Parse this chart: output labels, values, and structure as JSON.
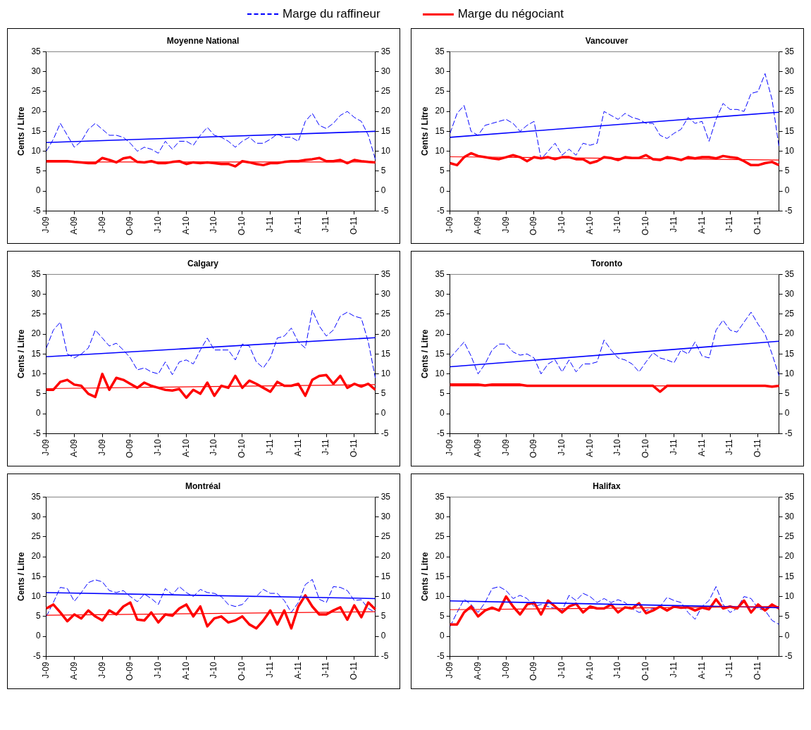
{
  "chart_data": [
    {
      "type": "line",
      "title": "Moyenne National",
      "ylabel": "Cents / Litre",
      "legend": "top",
      "marker": "none",
      "grid": false,
      "categories": [
        "J-09",
        null,
        null,
        null,
        "A-09",
        null,
        null,
        null,
        "J-09",
        null,
        null,
        null,
        "O-09",
        null,
        null,
        null,
        "J-10",
        null,
        null,
        null,
        "A-10",
        null,
        null,
        null,
        "J-10",
        null,
        null,
        null,
        "O-10",
        null,
        null,
        null,
        "J-11",
        null,
        null,
        null,
        "A-11",
        null,
        null,
        null,
        "J-11",
        null,
        null,
        null,
        "O-11",
        null,
        null,
        null
      ],
      "ylim": [
        -5,
        35
      ],
      "yticks": [
        -5,
        0,
        5,
        10,
        15,
        20,
        25,
        30,
        35
      ],
      "y2lim": [
        -5,
        35
      ],
      "y2ticks": [
        -5,
        0,
        5,
        10,
        15,
        20,
        25,
        30,
        35
      ],
      "series": [
        {
          "name": "Marge du raffineur",
          "color": "#0000ff",
          "line_style": "dashed",
          "values": [
            10,
            13,
            17,
            14,
            11,
            12.5,
            15.5,
            17,
            15.5,
            14,
            14,
            13.5,
            12,
            10,
            11,
            10.5,
            9.5,
            12.5,
            10.5,
            12.5,
            12.5,
            11.5,
            14,
            16,
            14,
            13.5,
            12.5,
            11,
            12.5,
            13.5,
            12,
            12,
            13,
            14.3,
            13.5,
            13.5,
            12.5,
            17.5,
            19.5,
            16.5,
            15.7,
            17,
            19,
            20,
            18.5,
            17.5,
            14,
            8
          ]
        },
        {
          "name": "Marge du négociant",
          "color": "#ff0000",
          "line_style": "solid",
          "values": [
            7.5,
            7.5,
            7.5,
            7.5,
            7.3,
            7.2,
            7,
            7,
            8.3,
            7.8,
            7.2,
            8.2,
            8.5,
            7.3,
            7.2,
            7.5,
            7,
            7,
            7.3,
            7.5,
            6.8,
            7.2,
            7,
            7.2,
            7,
            6.8,
            6.8,
            6.2,
            7.5,
            7.2,
            6.8,
            6.5,
            7,
            7,
            7.3,
            7.5,
            7.5,
            7.8,
            8,
            8.3,
            7.5,
            7.5,
            7.8,
            7,
            7.8,
            7.5,
            7.3,
            7.2
          ]
        },
        {
          "type": "line",
          "color": "#0000ff",
          "line_style": "solid",
          "values": [
            12.2,
            null,
            null,
            null,
            null,
            null,
            null,
            null,
            null,
            null,
            null,
            null,
            null,
            null,
            null,
            null,
            null,
            null,
            null,
            null,
            null,
            null,
            null,
            null,
            null,
            null,
            null,
            null,
            null,
            null,
            null,
            null,
            null,
            null,
            null,
            null,
            null,
            null,
            null,
            null,
            null,
            null,
            null,
            null,
            null,
            null,
            null,
            15
          ]
        },
        {
          "type": "line",
          "color": "#ff0000",
          "line_style": "solid",
          "values": [
            7.3,
            null,
            null,
            null,
            null,
            null,
            null,
            null,
            null,
            null,
            null,
            null,
            null,
            null,
            null,
            null,
            null,
            null,
            null,
            null,
            null,
            null,
            null,
            null,
            null,
            null,
            null,
            null,
            null,
            null,
            null,
            null,
            null,
            null,
            null,
            null,
            null,
            null,
            null,
            null,
            null,
            null,
            null,
            null,
            null,
            null,
            null,
            7.3
          ]
        }
      ]
    },
    {
      "type": "line",
      "title": "Vancouver",
      "ylabel": "Cents / Litre",
      "marker": "none",
      "grid": false,
      "categories": [
        "J-09",
        null,
        null,
        null,
        "A-09",
        null,
        null,
        null,
        "J-09",
        null,
        null,
        null,
        "O-09",
        null,
        null,
        null,
        "J-10",
        null,
        null,
        null,
        "A-10",
        null,
        null,
        null,
        "J-10",
        null,
        null,
        null,
        "O-10",
        null,
        null,
        null,
        "J-11",
        null,
        null,
        null,
        "A-11",
        null,
        null,
        null,
        "J-11",
        null,
        null,
        null,
        "O-11",
        null,
        null,
        null
      ],
      "ylim": [
        -5,
        35
      ],
      "yticks": [
        -5,
        0,
        5,
        10,
        15,
        20,
        25,
        30,
        35
      ],
      "y2lim": [
        -5,
        35
      ],
      "y2ticks": [
        -5,
        0,
        5,
        10,
        15,
        20,
        25,
        30,
        35
      ],
      "series": [
        {
          "color": "#0000ff",
          "line_style": "dashed",
          "values": [
            14.5,
            19.5,
            21.5,
            15,
            14,
            16.5,
            17,
            17.5,
            18,
            17,
            15,
            16.5,
            17.5,
            8,
            10,
            12,
            9,
            10.5,
            9,
            12,
            11.5,
            12,
            20,
            19,
            18,
            19.5,
            18.5,
            18,
            17,
            17,
            14,
            13.2,
            14.5,
            15.5,
            18.5,
            17,
            17.5,
            12.5,
            18,
            22,
            20.5,
            20.5,
            20,
            24.5,
            25,
            29.5,
            23,
            11
          ]
        },
        {
          "color": "#ff0000",
          "line_style": "solid",
          "values": [
            7,
            6.5,
            8.5,
            9.5,
            8.8,
            8.5,
            8.2,
            8,
            8.5,
            9,
            8.5,
            7.5,
            8.5,
            8.2,
            8.5,
            8,
            8.5,
            8.5,
            8,
            8,
            7,
            7.5,
            8.5,
            8.3,
            7.8,
            8.5,
            8.3,
            8.3,
            9,
            8,
            7.8,
            8.5,
            8.2,
            7.8,
            8.5,
            8.2,
            8.5,
            8.5,
            8.2,
            8.8,
            8.5,
            8.3,
            7.5,
            6.5,
            6.5,
            7,
            7.3,
            6.5
          ]
        },
        {
          "type": "line",
          "color": "#0000ff",
          "line_style": "solid",
          "values": [
            13.5,
            null,
            null,
            null,
            null,
            null,
            null,
            null,
            null,
            null,
            null,
            null,
            null,
            null,
            null,
            null,
            null,
            null,
            null,
            null,
            null,
            null,
            null,
            null,
            null,
            null,
            null,
            null,
            null,
            null,
            null,
            null,
            null,
            null,
            null,
            null,
            null,
            null,
            null,
            null,
            null,
            null,
            null,
            null,
            null,
            null,
            null,
            19.8
          ]
        },
        {
          "type": "line",
          "color": "#ff0000",
          "line_style": "solid",
          "values": [
            8.6,
            null,
            null,
            null,
            null,
            null,
            null,
            null,
            null,
            null,
            null,
            null,
            null,
            null,
            null,
            null,
            null,
            null,
            null,
            null,
            null,
            null,
            null,
            null,
            null,
            null,
            null,
            null,
            null,
            null,
            null,
            null,
            null,
            null,
            null,
            null,
            null,
            null,
            null,
            null,
            null,
            null,
            null,
            null,
            null,
            null,
            null,
            7.8
          ]
        }
      ]
    },
    {
      "type": "line",
      "title": "Calgary",
      "ylabel": "Cents / Litre",
      "marker": "none",
      "grid": false,
      "categories": [
        "J-09",
        null,
        null,
        null,
        "A-09",
        null,
        null,
        null,
        "J-09",
        null,
        null,
        null,
        "O-09",
        null,
        null,
        null,
        "J-10",
        null,
        null,
        null,
        "A-10",
        null,
        null,
        null,
        "J-10",
        null,
        null,
        null,
        "O-10",
        null,
        null,
        null,
        "J-11",
        null,
        null,
        null,
        "A-11",
        null,
        null,
        null,
        "J-11",
        null,
        null,
        null,
        "O-11",
        null,
        null,
        null
      ],
      "ylim": [
        -5,
        35
      ],
      "yticks": [
        -5,
        0,
        5,
        10,
        15,
        20,
        25,
        30,
        35
      ],
      "y2lim": [
        -5,
        35
      ],
      "y2ticks": [
        -5,
        0,
        5,
        10,
        15,
        20,
        25,
        30,
        35
      ],
      "series": [
        {
          "color": "#0000ff",
          "line_style": "dashed",
          "values": [
            16.5,
            21,
            23,
            15,
            14,
            15,
            16.5,
            21,
            19,
            17,
            17.7,
            16,
            14,
            11,
            11.5,
            10.5,
            10,
            13,
            9.8,
            13,
            13.5,
            12.5,
            16,
            19,
            16,
            16,
            16,
            13.5,
            17.5,
            17,
            13,
            11.5,
            14,
            19,
            19.5,
            21.5,
            18,
            16.5,
            26,
            22,
            19.5,
            21,
            24.5,
            25.5,
            24.5,
            24,
            18,
            9
          ]
        },
        {
          "color": "#ff0000",
          "line_style": "solid",
          "values": [
            6,
            6,
            8,
            8.5,
            7.3,
            7,
            5,
            4.2,
            10,
            6,
            9,
            8.5,
            7.5,
            6.5,
            7.8,
            7,
            6.5,
            6,
            5.8,
            6.2,
            4,
            6,
            5,
            7.8,
            4.5,
            7,
            6.5,
            9.5,
            6.5,
            8.3,
            7.5,
            6.5,
            5.5,
            8,
            7,
            7,
            7.5,
            4.5,
            8.5,
            9.5,
            9.7,
            7.5,
            9.5,
            6.5,
            7.5,
            6.8,
            7.5,
            6
          ]
        },
        {
          "type": "line",
          "color": "#0000ff",
          "line_style": "solid",
          "values": [
            14.3,
            null,
            null,
            null,
            null,
            null,
            null,
            null,
            null,
            null,
            null,
            null,
            null,
            null,
            null,
            null,
            null,
            null,
            null,
            null,
            null,
            null,
            null,
            null,
            null,
            null,
            null,
            null,
            null,
            null,
            null,
            null,
            null,
            null,
            null,
            null,
            null,
            null,
            null,
            null,
            null,
            null,
            null,
            null,
            null,
            null,
            null,
            19.1
          ]
        },
        {
          "type": "line",
          "color": "#ff0000",
          "line_style": "solid",
          "values": [
            6.3,
            null,
            null,
            null,
            null,
            null,
            null,
            null,
            null,
            null,
            null,
            null,
            null,
            null,
            null,
            null,
            null,
            null,
            null,
            null,
            null,
            null,
            null,
            null,
            null,
            null,
            null,
            null,
            null,
            null,
            null,
            null,
            null,
            null,
            null,
            null,
            null,
            null,
            null,
            null,
            null,
            null,
            null,
            null,
            null,
            null,
            null,
            7.3
          ]
        }
      ]
    },
    {
      "type": "line",
      "title": "Toronto",
      "ylabel": "Cents / Litre",
      "marker": "none",
      "grid": false,
      "categories": [
        "J-09",
        null,
        null,
        null,
        "A-09",
        null,
        null,
        null,
        "J-09",
        null,
        null,
        null,
        "O-09",
        null,
        null,
        null,
        "J-10",
        null,
        null,
        null,
        "A-10",
        null,
        null,
        null,
        "J-10",
        null,
        null,
        null,
        "O-10",
        null,
        null,
        null,
        "J-11",
        null,
        null,
        null,
        "A-11",
        null,
        null,
        null,
        "J-11",
        null,
        null,
        null,
        "O-11",
        null,
        null,
        null
      ],
      "ylim": [
        -5,
        35
      ],
      "yticks": [
        -5,
        0,
        5,
        10,
        15,
        20,
        25,
        30,
        35
      ],
      "y2lim": [
        -5,
        35
      ],
      "y2ticks": [
        -5,
        0,
        5,
        10,
        15,
        20,
        25,
        30,
        35
      ],
      "series": [
        {
          "color": "#0000ff",
          "line_style": "dashed",
          "values": [
            14,
            16,
            18,
            14.5,
            10,
            12.5,
            16,
            17.5,
            17.5,
            15.5,
            14.7,
            15,
            14,
            10,
            12.5,
            13.5,
            10.5,
            13.5,
            10.5,
            12.5,
            12.5,
            13,
            18.5,
            16,
            14,
            13.5,
            12.5,
            10.5,
            13,
            15.3,
            14,
            13.5,
            12.8,
            16,
            15,
            18,
            14.5,
            14,
            21,
            23.5,
            21,
            20.5,
            23,
            25.5,
            22.5,
            20,
            15,
            9.5
          ]
        },
        {
          "color": "#ff0000",
          "line_style": "solid",
          "values": [
            7.3,
            7.3,
            7.3,
            7.3,
            7.3,
            7.1,
            7.3,
            7.3,
            7.3,
            7.3,
            7.3,
            7,
            7,
            7,
            7,
            7,
            7,
            7,
            7,
            7,
            7,
            7,
            7,
            7,
            7,
            7,
            7,
            7,
            7,
            7,
            5.5,
            7,
            7,
            7,
            7,
            7,
            7,
            7,
            7,
            7,
            7,
            7,
            7,
            7,
            7,
            7,
            6.8,
            7
          ]
        },
        {
          "type": "line",
          "color": "#0000ff",
          "line_style": "solid",
          "values": [
            11.8,
            null,
            null,
            null,
            null,
            null,
            null,
            null,
            null,
            null,
            null,
            null,
            null,
            null,
            null,
            null,
            null,
            null,
            null,
            null,
            null,
            null,
            null,
            null,
            null,
            null,
            null,
            null,
            null,
            null,
            null,
            null,
            null,
            null,
            null,
            null,
            null,
            null,
            null,
            null,
            null,
            null,
            null,
            null,
            null,
            null,
            null,
            18.2
          ]
        },
        {
          "type": "line",
          "color": "#ff0000",
          "line_style": "solid",
          "values": [
            7,
            null,
            null,
            null,
            null,
            null,
            null,
            null,
            null,
            null,
            null,
            null,
            null,
            null,
            null,
            null,
            null,
            null,
            null,
            null,
            null,
            null,
            null,
            null,
            null,
            null,
            null,
            null,
            null,
            null,
            null,
            null,
            null,
            null,
            null,
            null,
            null,
            null,
            null,
            null,
            null,
            null,
            null,
            null,
            null,
            null,
            null,
            7
          ]
        }
      ]
    },
    {
      "type": "line",
      "title": "Montréal",
      "ylabel": "Cents / Litre",
      "marker": "none",
      "grid": false,
      "categories": [
        "J-09",
        null,
        null,
        null,
        "A-09",
        null,
        null,
        null,
        "J-09",
        null,
        null,
        null,
        "O-09",
        null,
        null,
        null,
        "J-10",
        null,
        null,
        null,
        "A-10",
        null,
        null,
        null,
        "J-10",
        null,
        null,
        null,
        "O-10",
        null,
        null,
        null,
        "J-11",
        null,
        null,
        null,
        "A-11",
        null,
        null,
        null,
        "J-11",
        null,
        null,
        null,
        "O-11",
        null,
        null,
        null
      ],
      "ylim": [
        -5,
        35
      ],
      "yticks": [
        -5,
        0,
        5,
        10,
        15,
        20,
        25,
        30,
        35
      ],
      "y2lim": [
        -5,
        35
      ],
      "y2ticks": [
        -5,
        0,
        5,
        10,
        15,
        20,
        25,
        30,
        35
      ],
      "series": [
        {
          "color": "#0000ff",
          "line_style": "dashed",
          "values": [
            5,
            8.5,
            12.3,
            12,
            8.8,
            11,
            13.5,
            14.2,
            13.7,
            11.5,
            11,
            11.5,
            10,
            8.7,
            10.6,
            9.5,
            8,
            12,
            10.5,
            12.5,
            11,
            10,
            11.8,
            11,
            10.8,
            10,
            8,
            7.5,
            8,
            10,
            10,
            11.8,
            10.8,
            10.8,
            9,
            6,
            8.5,
            13,
            14.3,
            9.3,
            8.5,
            12.5,
            12.3,
            11.5,
            9,
            9.2,
            7,
            6
          ]
        },
        {
          "color": "#ff0000",
          "line_style": "solid",
          "values": [
            7,
            8,
            6,
            3.8,
            5.5,
            4.5,
            6.5,
            5,
            4,
            6.5,
            5.5,
            7.5,
            8.5,
            4.2,
            4,
            6,
            3.5,
            5.5,
            5.2,
            7,
            8,
            5,
            7.5,
            2.5,
            4.5,
            5,
            3.5,
            4,
            5,
            3,
            2,
            4,
            6.5,
            3,
            6.5,
            2,
            7.5,
            10.3,
            7.5,
            5.5,
            5.5,
            6.5,
            7.3,
            4.2,
            7.8,
            4.8,
            8.5,
            6.8
          ]
        },
        {
          "type": "line",
          "color": "#0000ff",
          "line_style": "solid",
          "values": [
            11,
            null,
            null,
            null,
            null,
            null,
            null,
            null,
            null,
            null,
            null,
            null,
            null,
            null,
            null,
            null,
            null,
            null,
            null,
            null,
            null,
            null,
            null,
            null,
            null,
            null,
            null,
            null,
            null,
            null,
            null,
            null,
            null,
            null,
            null,
            null,
            null,
            null,
            null,
            null,
            null,
            null,
            null,
            null,
            null,
            null,
            null,
            9.5
          ]
        },
        {
          "type": "line",
          "color": "#ff0000",
          "line_style": "solid",
          "values": [
            5.3,
            null,
            null,
            null,
            null,
            null,
            null,
            null,
            null,
            null,
            null,
            null,
            null,
            null,
            null,
            null,
            null,
            null,
            null,
            null,
            null,
            null,
            null,
            null,
            null,
            null,
            null,
            null,
            null,
            null,
            null,
            null,
            null,
            null,
            null,
            null,
            null,
            null,
            null,
            null,
            null,
            null,
            null,
            null,
            null,
            null,
            null,
            6.2
          ]
        }
      ]
    },
    {
      "type": "line",
      "title": "Halifax",
      "ylabel": "Cents / Litre",
      "marker": "none",
      "grid": false,
      "categories": [
        "J-09",
        null,
        null,
        null,
        "A-09",
        null,
        null,
        null,
        "J-09",
        null,
        null,
        null,
        "O-09",
        null,
        null,
        null,
        "J-10",
        null,
        null,
        null,
        "A-10",
        null,
        null,
        null,
        "J-10",
        null,
        null,
        null,
        "O-10",
        null,
        null,
        null,
        "J-11",
        null,
        null,
        null,
        "A-11",
        null,
        null,
        null,
        "J-11",
        null,
        null,
        null,
        "O-11",
        null,
        null,
        null
      ],
      "ylim": [
        -5,
        35
      ],
      "yticks": [
        -5,
        0,
        5,
        10,
        15,
        20,
        25,
        30,
        35
      ],
      "y2lim": [
        -5,
        35
      ],
      "y2ticks": [
        -5,
        0,
        5,
        10,
        15,
        20,
        25,
        30,
        35
      ],
      "series": [
        {
          "color": "#0000ff",
          "line_style": "dashed",
          "values": [
            2.5,
            6,
            9.3,
            8,
            6,
            8.5,
            12,
            12.5,
            11.5,
            9.5,
            10.3,
            9.5,
            7.5,
            8,
            7.5,
            7,
            6.5,
            10.3,
            9,
            10.8,
            10,
            8.5,
            9.5,
            8.5,
            9.2,
            8.5,
            7,
            6,
            6.5,
            7,
            7.5,
            9.8,
            9,
            8.5,
            6,
            4.3,
            7.5,
            9,
            12.5,
            8,
            6,
            7,
            10,
            9.5,
            7,
            6.5,
            4,
            3
          ]
        },
        {
          "color": "#ff0000",
          "line_style": "solid",
          "values": [
            3,
            3,
            6,
            7.5,
            5,
            6.5,
            7.2,
            6.5,
            10,
            7.5,
            5.5,
            8,
            8.5,
            5.5,
            9,
            7.5,
            6,
            7.5,
            8.2,
            6,
            7.5,
            7,
            7,
            8,
            6,
            7.3,
            7,
            8.3,
            5.8,
            6.5,
            7.5,
            6.5,
            7.5,
            7.2,
            7.3,
            6.5,
            7.2,
            6.8,
            9.3,
            7,
            7.5,
            7,
            9,
            6,
            8,
            6.5,
            8,
            7
          ]
        },
        {
          "type": "line",
          "color": "#0000ff",
          "line_style": "solid",
          "values": [
            8.9,
            null,
            null,
            null,
            null,
            null,
            null,
            null,
            null,
            null,
            null,
            null,
            null,
            null,
            null,
            null,
            null,
            null,
            null,
            null,
            null,
            null,
            null,
            null,
            null,
            null,
            null,
            null,
            null,
            null,
            null,
            null,
            null,
            null,
            null,
            null,
            null,
            null,
            null,
            null,
            null,
            null,
            null,
            null,
            null,
            null,
            null,
            7.2
          ]
        },
        {
          "type": "line",
          "color": "#ff0000",
          "line_style": "solid",
          "values": [
            6.7,
            null,
            null,
            null,
            null,
            null,
            null,
            null,
            null,
            null,
            null,
            null,
            null,
            null,
            null,
            null,
            null,
            null,
            null,
            null,
            null,
            null,
            null,
            null,
            null,
            null,
            null,
            null,
            null,
            null,
            null,
            null,
            null,
            null,
            null,
            null,
            null,
            null,
            null,
            null,
            null,
            null,
            null,
            null,
            null,
            null,
            null,
            7.5
          ]
        }
      ]
    }
  ]
}
